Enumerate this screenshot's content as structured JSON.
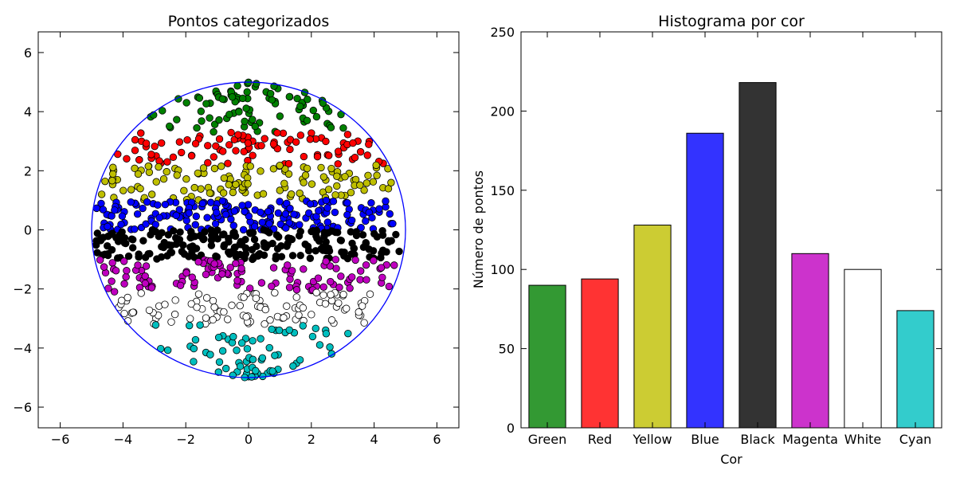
{
  "chart_data": [
    {
      "type": "scatter",
      "title": "Pontos categorizados",
      "xlabel": "",
      "ylabel": "",
      "xlim": [
        -6.7,
        6.7
      ],
      "ylim": [
        -6.7,
        6.7
      ],
      "xticks": [
        "−6",
        "−4",
        "−2",
        "0",
        "2",
        "4",
        "6"
      ],
      "yticks": [
        "−6",
        "−4",
        "−2",
        "0",
        "2",
        "4",
        "6"
      ],
      "grid": false,
      "circle": {
        "center": [
          0,
          0
        ],
        "radius": 5,
        "color": "#0000ff"
      },
      "series": [
        {
          "color": "#008000",
          "ymin": 3.3,
          "ymax": 5.0,
          "count": 90
        },
        {
          "color": "#ff0000",
          "ymin": 2.2,
          "ymax": 3.3,
          "count": 94
        },
        {
          "color": "#bfbf00",
          "ymin": 1.0,
          "ymax": 2.2,
          "count": 128
        },
        {
          "color": "#0000ff",
          "ymin": 0.0,
          "ymax": 1.0,
          "count": 186
        },
        {
          "color": "#000000",
          "ymin": -1.0,
          "ymax": 0.0,
          "count": 218
        },
        {
          "color": "#bf00bf",
          "ymin": -2.1,
          "ymax": -1.0,
          "count": 110
        },
        {
          "color": "#ffffff",
          "ymin": -3.2,
          "ymax": -2.1,
          "count": 100
        },
        {
          "color": "#00bfbf",
          "ymin": -5.0,
          "ymax": -3.2,
          "count": 74
        }
      ]
    },
    {
      "type": "bar",
      "title": "Histograma por cor",
      "xlabel": "Cor",
      "ylabel": "Número de pontos",
      "ylim": [
        0,
        250
      ],
      "yticks": [
        "0",
        "50",
        "100",
        "150",
        "200",
        "250"
      ],
      "grid": false,
      "categories": [
        "Green",
        "Red",
        "Yellow",
        "Blue",
        "Black",
        "Magenta",
        "White",
        "Cyan"
      ],
      "values": [
        90,
        94,
        128,
        186,
        218,
        110,
        100,
        74
      ],
      "colors": [
        "#339933",
        "#ff3333",
        "#cccc33",
        "#3333ff",
        "#333333",
        "#cc33cc",
        "#ffffff",
        "#33cccc"
      ]
    }
  ]
}
